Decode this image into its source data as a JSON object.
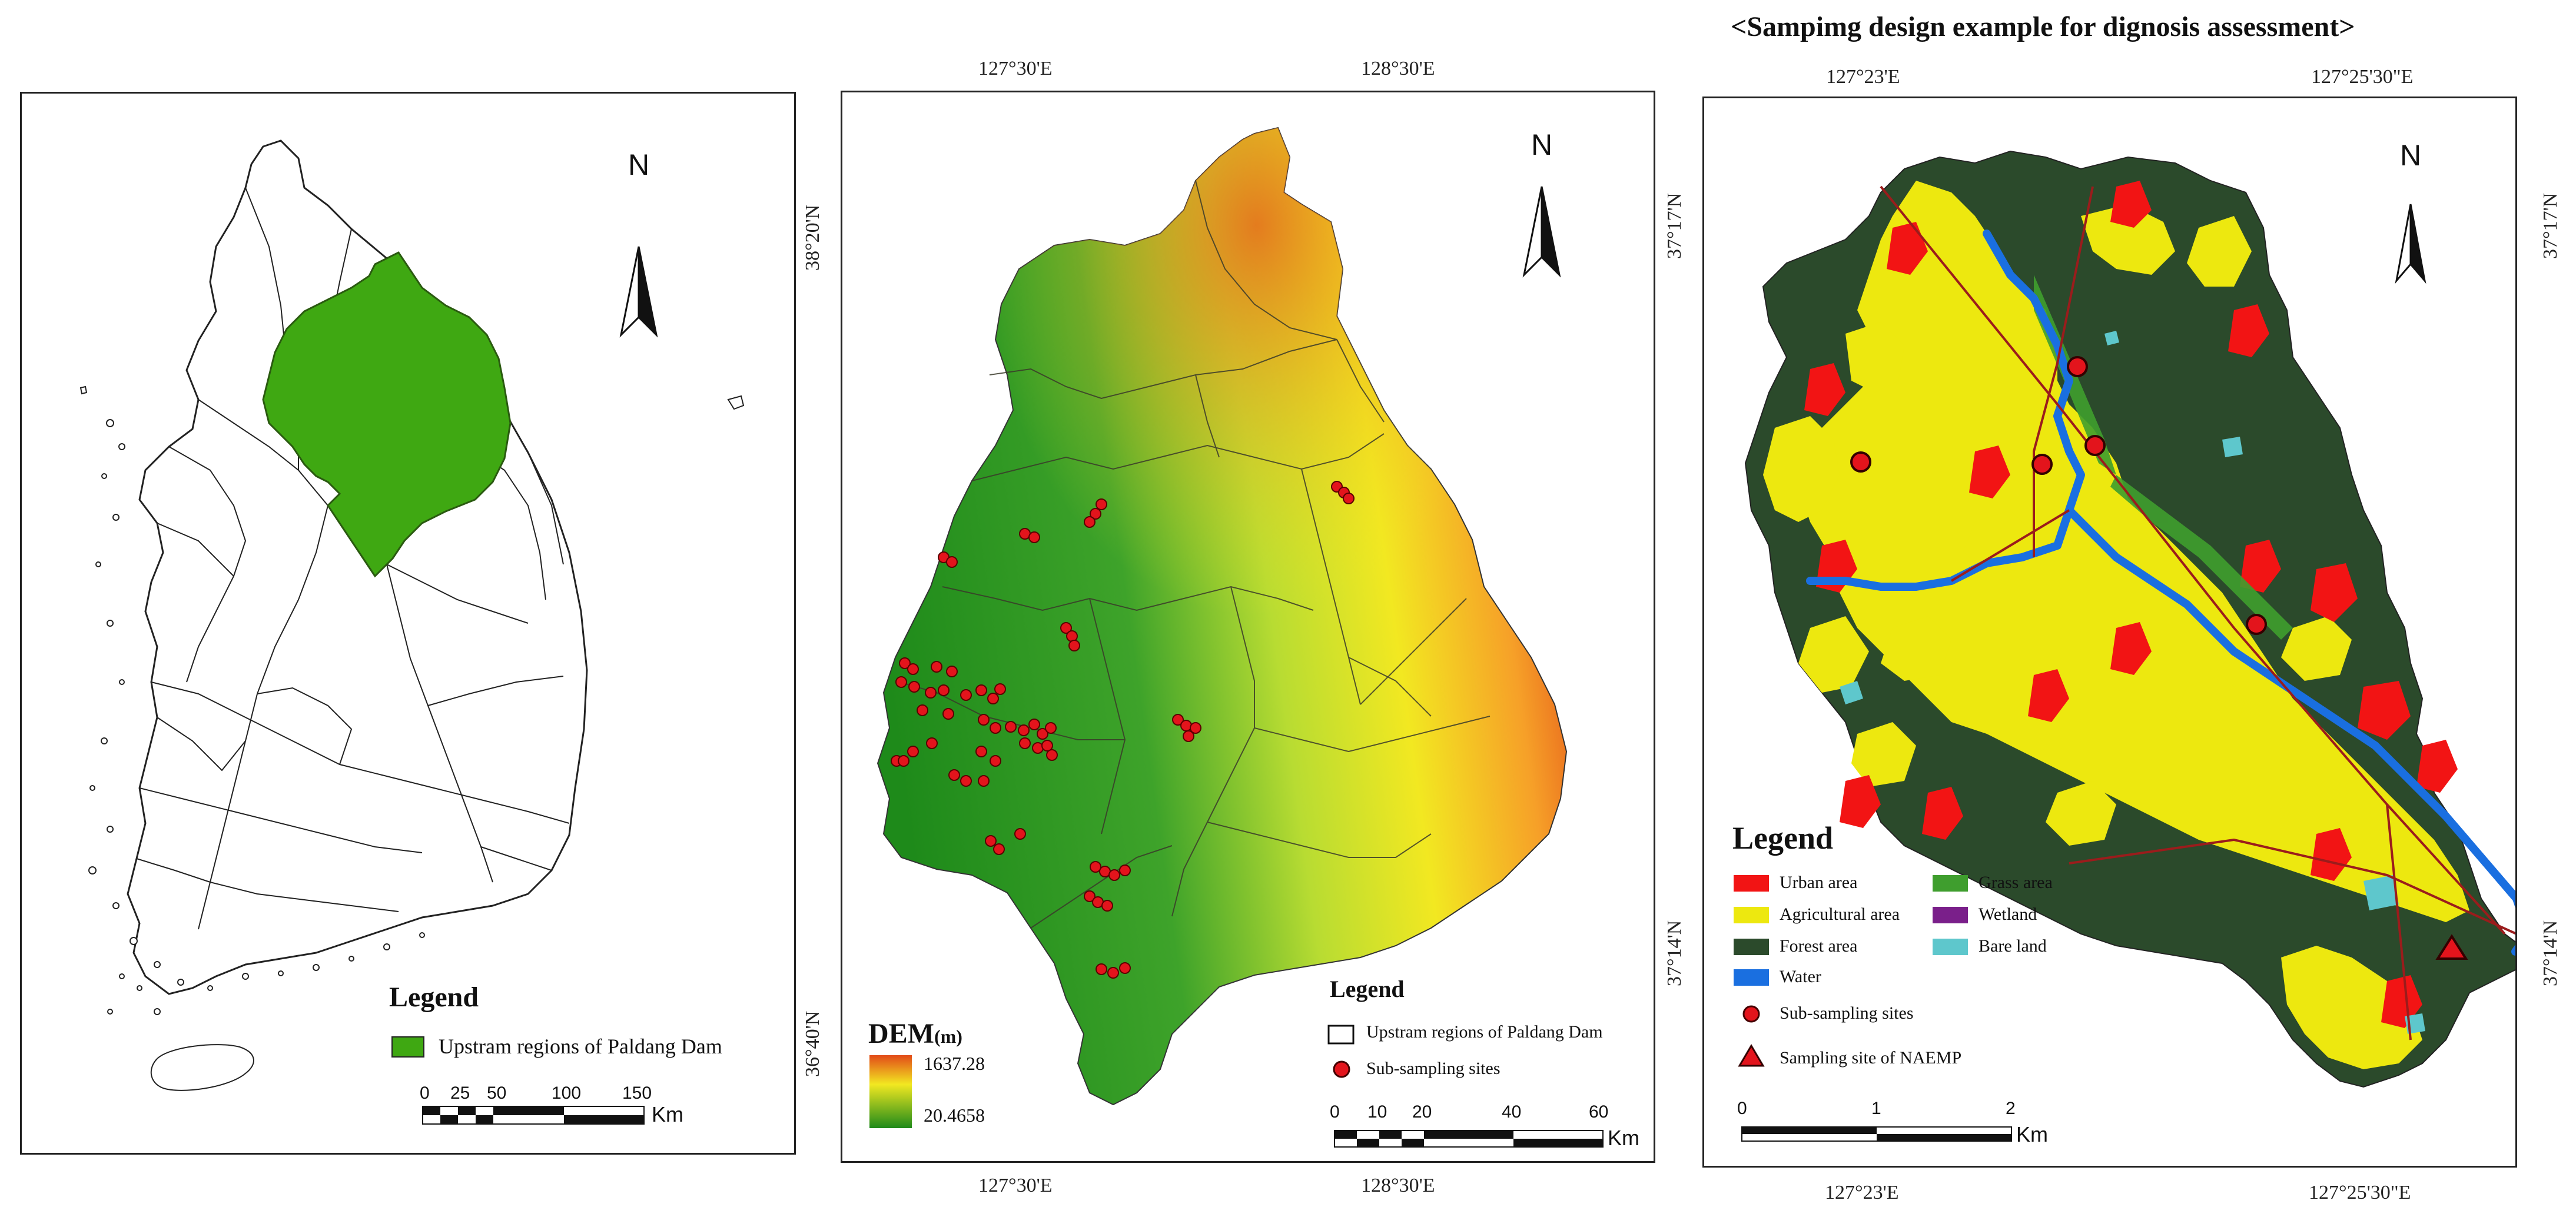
{
  "figure_title": "<Sampimg design example for dignosis assessment>",
  "panel1": {
    "north_label": "N",
    "legend": {
      "title": "Legend",
      "items": [
        {
          "label": "Upstram regions of Paldang Dam",
          "color": "#3fa812"
        }
      ]
    },
    "scale": {
      "ticks": [
        "0",
        "25",
        "50",
        "100",
        "150"
      ],
      "unit": "Km"
    }
  },
  "panel2": {
    "top_coords": [
      "127°30'E",
      "128°30'E"
    ],
    "bottom_coords": [
      "127°30'E",
      "128°30'E"
    ],
    "left_coords": [
      "38°20'N",
      "36°40'N"
    ],
    "north_label": "N",
    "dem": {
      "title": "DEM",
      "unit": "(m)",
      "max": "1637.28",
      "min": "20.4658",
      "color_high": "#e24a18",
      "color_mid": "#f2e821",
      "color_low": "#1e8a1a"
    },
    "legend": {
      "title": "Legend",
      "items": [
        {
          "label": "Upstram regions of Paldang Dam",
          "symbol": "box"
        },
        {
          "label": "Sub-sampling sites",
          "symbol": "red-dot"
        }
      ]
    },
    "scale": {
      "ticks": [
        "0",
        "10",
        "20",
        "40",
        "60"
      ],
      "unit": "Km"
    }
  },
  "panel3": {
    "top_coords": [
      "127°23'E",
      "127°25'30\"E"
    ],
    "bottom_coords": [
      "127°23'E",
      "127°25'30\"E"
    ],
    "left_coords": [
      "37°17'N",
      "37°14'N"
    ],
    "right_coords": [
      "37°17'N",
      "37°14'N"
    ],
    "north_label": "N",
    "legend": {
      "title": "Legend",
      "landuse": [
        {
          "label": "Urban area",
          "color": "#f21414"
        },
        {
          "label": "Grass area",
          "color": "#3f9e2e"
        },
        {
          "label": "Agricultural area",
          "color": "#ede80f"
        },
        {
          "label": "Wetland",
          "color": "#7a1f8a"
        },
        {
          "label": "Forest area",
          "color": "#2b4a2b"
        },
        {
          "label": "Bare land",
          "color": "#5ec7cc"
        },
        {
          "label": "Water",
          "color": "#1a6fe0"
        }
      ],
      "sub_sampling": "Sub-sampling sites",
      "naemp": "Sampling site of NAEMP"
    },
    "scale": {
      "ticks": [
        "0",
        "1",
        "2"
      ],
      "unit": "Km"
    }
  }
}
